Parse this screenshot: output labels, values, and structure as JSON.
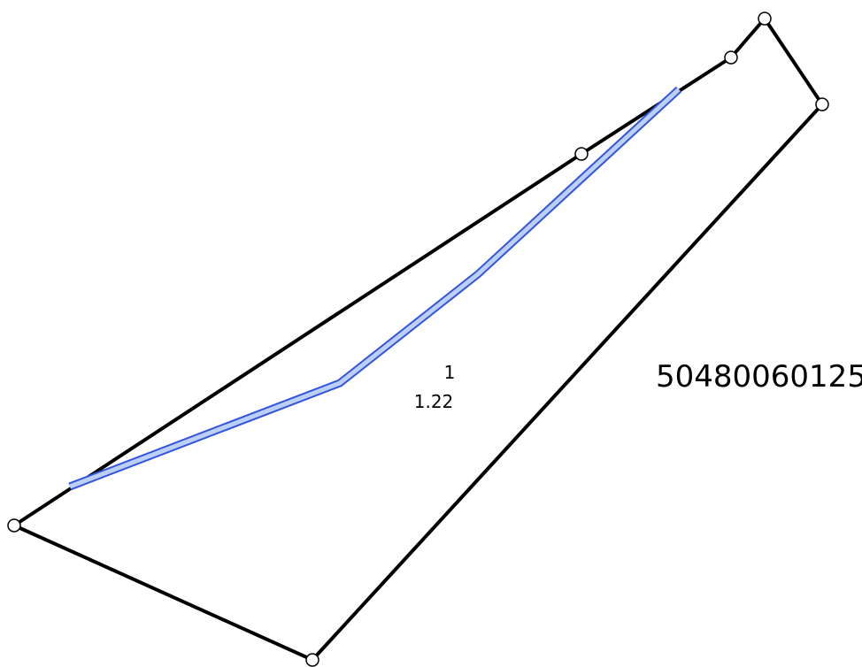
{
  "parcel": {
    "number": "1",
    "area": "1.22"
  },
  "cadastral_block": {
    "id": "50480060125"
  },
  "colors": {
    "parcel_boundary": "#000000",
    "vertex_fill": "#ffffff",
    "highlight_line": "#3355dd",
    "highlight_fill": "#bcd0f5"
  }
}
